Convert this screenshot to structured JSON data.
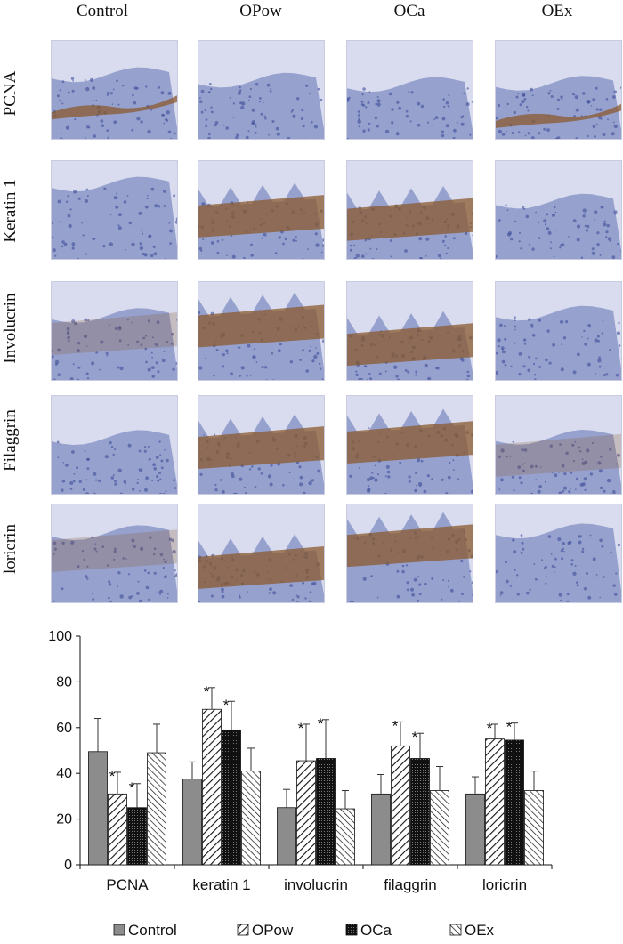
{
  "micrographs": {
    "columns": [
      "Control",
      "OPow",
      "OCa",
      "OEx"
    ],
    "rows": [
      "PCNA",
      "Keratin 1",
      "Involucrin",
      "Filaggrin",
      "loricrin"
    ],
    "stain": {
      "PCNA": [
        "strong-basal",
        "none",
        "none",
        "strong-basal"
      ],
      "Keratin 1": [
        "none",
        "strong",
        "strong",
        "none"
      ],
      "Involucrin": [
        "weak",
        "strong",
        "strong",
        "none"
      ],
      "Filaggrin": [
        "none",
        "strong",
        "strong",
        "weak"
      ],
      "loricrin": [
        "weak",
        "strong",
        "strong",
        "none"
      ]
    },
    "colors": {
      "hematoxylin": "#8a96c8",
      "dab": "#8a5a2e"
    }
  },
  "chart_data": {
    "type": "bar",
    "categories": [
      "PCNA",
      "keratin 1",
      "involucrin",
      "filaggrin",
      "loricrin"
    ],
    "series": [
      {
        "name": "Control",
        "pattern": "solid-gray",
        "values": [
          49.5,
          37.5,
          25,
          31,
          31
        ],
        "errors": [
          14.5,
          7.5,
          8,
          8.5,
          7.5
        ]
      },
      {
        "name": "OPow",
        "pattern": "diagonal-hatch",
        "values": [
          31,
          68,
          45.5,
          52,
          55
        ],
        "errors": [
          9.5,
          9.5,
          16,
          10.5,
          6.5
        ]
      },
      {
        "name": "OCa",
        "pattern": "black-dotted",
        "values": [
          25,
          59,
          46.5,
          46.5,
          54.5
        ],
        "errors": [
          10.5,
          12.5,
          17,
          11,
          7.5
        ]
      },
      {
        "name": "OEx",
        "pattern": "back-diagonal-hatch",
        "values": [
          49,
          41,
          24.5,
          32.5,
          32.5
        ],
        "errors": [
          12.5,
          10,
          8,
          10.5,
          8.5
        ]
      }
    ],
    "significance": [
      [
        false,
        true,
        true,
        false
      ],
      [
        false,
        true,
        true,
        false
      ],
      [
        false,
        true,
        true,
        false
      ],
      [
        false,
        true,
        true,
        false
      ],
      [
        false,
        true,
        true,
        false
      ]
    ],
    "significance_mark": "*",
    "ylim": [
      0,
      100
    ],
    "yticks": [
      0,
      20,
      40,
      60,
      80,
      100
    ],
    "grid": false,
    "legend_position": "bottom",
    "title": "",
    "xlabel": "",
    "ylabel": ""
  }
}
